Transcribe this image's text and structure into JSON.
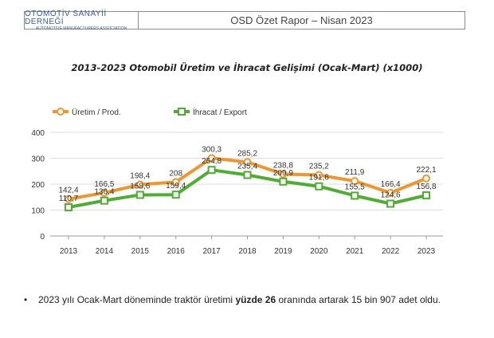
{
  "header": {
    "org_name": "OTOMOTİV SANAYİİ DERNEĞİ",
    "org_name_en": "AUTOMOTIVE MANUFACTURERS ASSOCIATION",
    "report_title": "OSD Özet Rapor – Nisan 2023"
  },
  "chart_data": {
    "type": "line",
    "title": "2013-2023 Otomobil Üretim ve İhracat Gelişimi (Ocak-Mart) (x1000)",
    "categories": [
      "2013",
      "2014",
      "2015",
      "2016",
      "2017",
      "2018",
      "2019",
      "2020",
      "2021",
      "2022",
      "2023"
    ],
    "ylim": [
      0,
      400
    ],
    "yticks": [
      0,
      100,
      200,
      300,
      400
    ],
    "grid": true,
    "legend_position": "top-left",
    "series": [
      {
        "name": "Üretim / Prod.",
        "color": "#f0962d",
        "values": [
          142.4,
          166.5,
          198.4,
          208,
          300.3,
          285.2,
          238.8,
          235.2,
          211.9,
          166.4,
          222.1
        ],
        "labels": [
          "142,4",
          "166,5",
          "198,4",
          "208",
          "300,3",
          "285,2",
          "238,8",
          "235,2",
          "211,9",
          "166,4",
          "222,1"
        ]
      },
      {
        "name": "İhracat / Export",
        "color": "#4caf30",
        "values": [
          110.7,
          136.4,
          158.6,
          159.4,
          254.8,
          235.4,
          209.9,
          191.6,
          155.5,
          124.6,
          156.8
        ],
        "labels": [
          "110,7",
          "136,4",
          "158,6",
          "159,4",
          "254,8",
          "235,4",
          "209,9",
          "191,6",
          "155,5",
          "124,6",
          "156,8"
        ]
      }
    ]
  },
  "bullet": {
    "before": "2023 yılı Ocak-Mart döneminde traktör üretimi ",
    "bold": "yüzde 26",
    "after": " oranında artarak 15 bin 907 adet oldu."
  }
}
